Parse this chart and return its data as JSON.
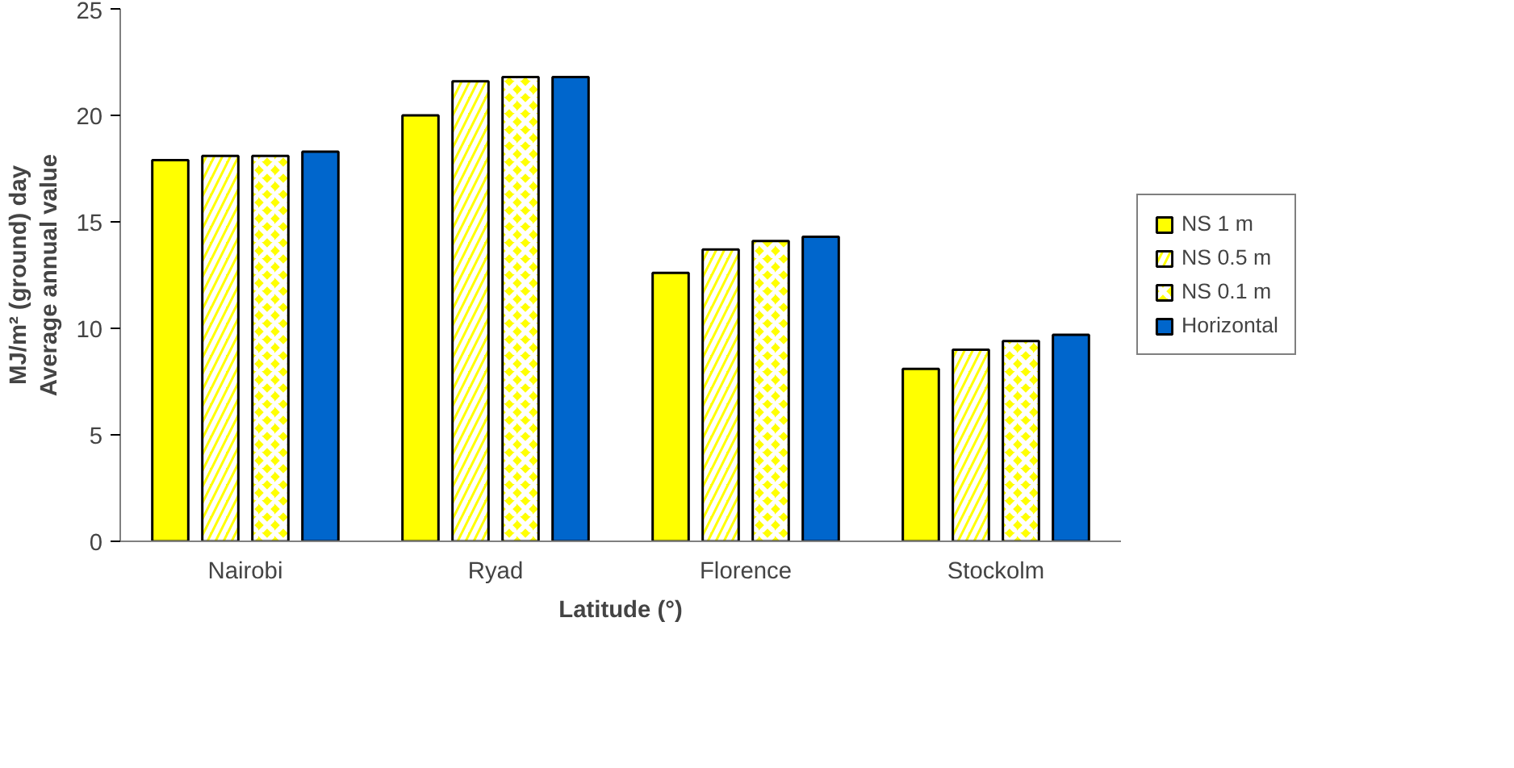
{
  "chart_data": {
    "type": "bar",
    "xlabel": "Latitude (°)",
    "ylabel": "MJ/m² (ground) day\nAverage annual value",
    "categories": [
      "Nairobi",
      "Ryad",
      "Florence",
      "Stockolm"
    ],
    "series": [
      {
        "name": "NS 1 m",
        "color": "#ffff00",
        "values": [
          17.9,
          20.0,
          12.6,
          8.1
        ]
      },
      {
        "name": "NS 0.5 m",
        "color": "#ffff00",
        "values": [
          18.1,
          21.6,
          13.7,
          9.0
        ]
      },
      {
        "name": "NS 0.1 m",
        "color": "#ffff00",
        "values": [
          18.1,
          21.8,
          14.1,
          9.4
        ]
      },
      {
        "name": "Horizontal",
        "color": "#0066cc",
        "values": [
          18.3,
          21.8,
          14.3,
          9.7
        ]
      }
    ],
    "ylim": [
      0,
      25
    ],
    "yticks": [
      0,
      5,
      10,
      15,
      20,
      25
    ],
    "grid": false,
    "legend": "right"
  }
}
